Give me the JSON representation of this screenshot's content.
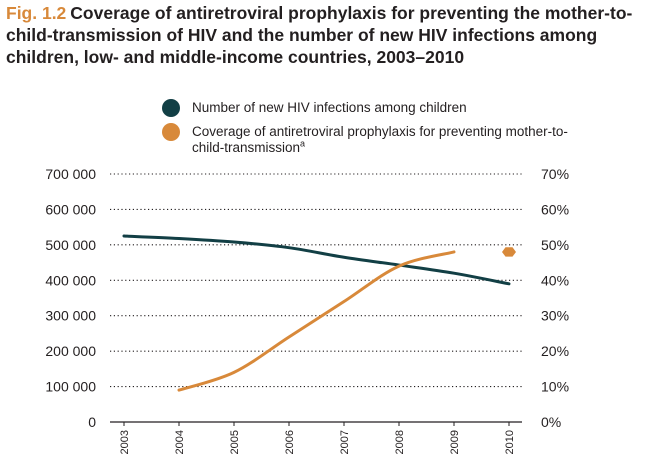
{
  "figure": {
    "label": "Fig. 1.2",
    "title": "Coverage of antiretroviral prophylaxis for preventing the mother-to-child-transmission of HIV and the number of new HIV infections among children, low- and middle-income countries, 2003–2010"
  },
  "colors": {
    "infections": "#123f45",
    "coverage": "#d8893a",
    "title_accent": "#d8893a",
    "text": "#231f20"
  },
  "chart_data": {
    "type": "line",
    "title": "Coverage of antiretroviral prophylaxis for preventing the mother-to-child-transmission of HIV and the number of new HIV infections among children, low- and middle-income countries, 2003–2010",
    "x": [
      "2003",
      "2004",
      "2005",
      "2006",
      "2007",
      "2008",
      "2009",
      "2010"
    ],
    "y_left": {
      "ylim": [
        0,
        700000
      ],
      "ticks": [
        "0",
        "100 000",
        "200 000",
        "300 000",
        "400 000",
        "500 000",
        "600 000",
        "700 000"
      ]
    },
    "y_right": {
      "ylim": [
        0,
        70
      ],
      "ticks": [
        "0%",
        "10%",
        "20%",
        "30%",
        "40%",
        "50%",
        "60%",
        "70%"
      ]
    },
    "grid": "horizontal dotted",
    "legend": "top",
    "series": [
      {
        "name": "Number of new HIV infections among children",
        "axis": "left",
        "color": "#123f45",
        "values": [
          525000,
          518000,
          508000,
          492000,
          465000,
          443000,
          420000,
          390000
        ]
      },
      {
        "name": "Coverage of antiretroviral prophylaxis for preventing mother-to-child-transmission",
        "name_note": "a",
        "axis": "right",
        "color": "#d8893a",
        "values": [
          null,
          9,
          14,
          24,
          34,
          44,
          48,
          null
        ],
        "point_2010": 48
      }
    ]
  }
}
